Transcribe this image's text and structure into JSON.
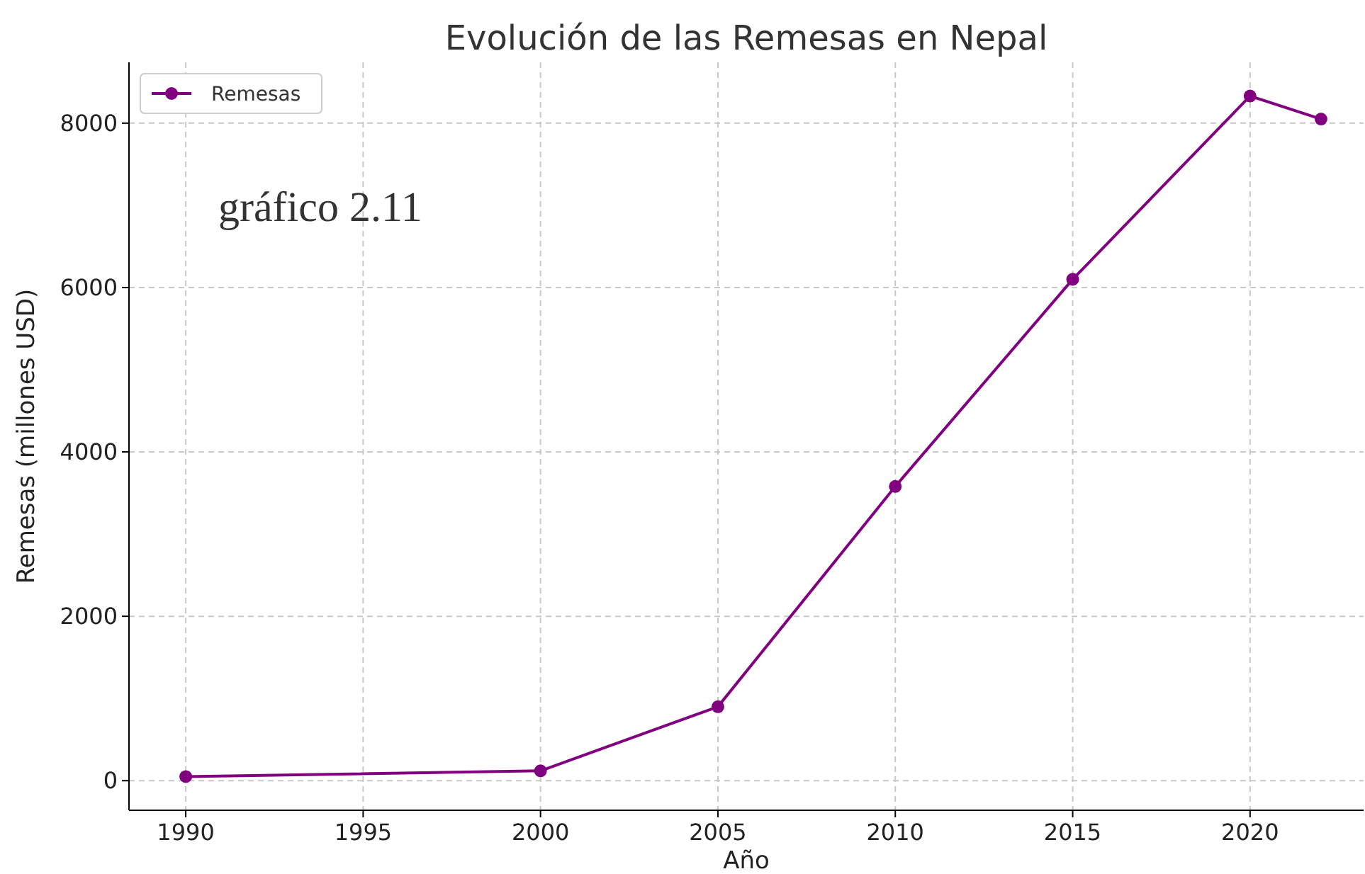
{
  "chart_data": {
    "type": "line",
    "title": "Evolución de las Remesas en Nepal",
    "xlabel": "Año",
    "ylabel": "Remesas (millones USD)",
    "x": [
      1990,
      2000,
      2005,
      2010,
      2015,
      2020,
      2022
    ],
    "series": [
      {
        "name": "Remesas",
        "color": "#800080",
        "values": [
          50,
          120,
          900,
          3580,
          6100,
          8330,
          8050
        ]
      }
    ],
    "xlim": [
      1988.4,
      2023.2
    ],
    "xticks": [
      1990,
      1995,
      2000,
      2005,
      2010,
      2015,
      2020
    ],
    "ylim": [
      -360,
      8740
    ],
    "yticks": [
      0,
      2000,
      4000,
      6000,
      8000
    ],
    "grid": true,
    "legend": "top left",
    "marker": "circle",
    "line_style": "solid",
    "annotations": [
      "gráfico 2.11"
    ]
  }
}
